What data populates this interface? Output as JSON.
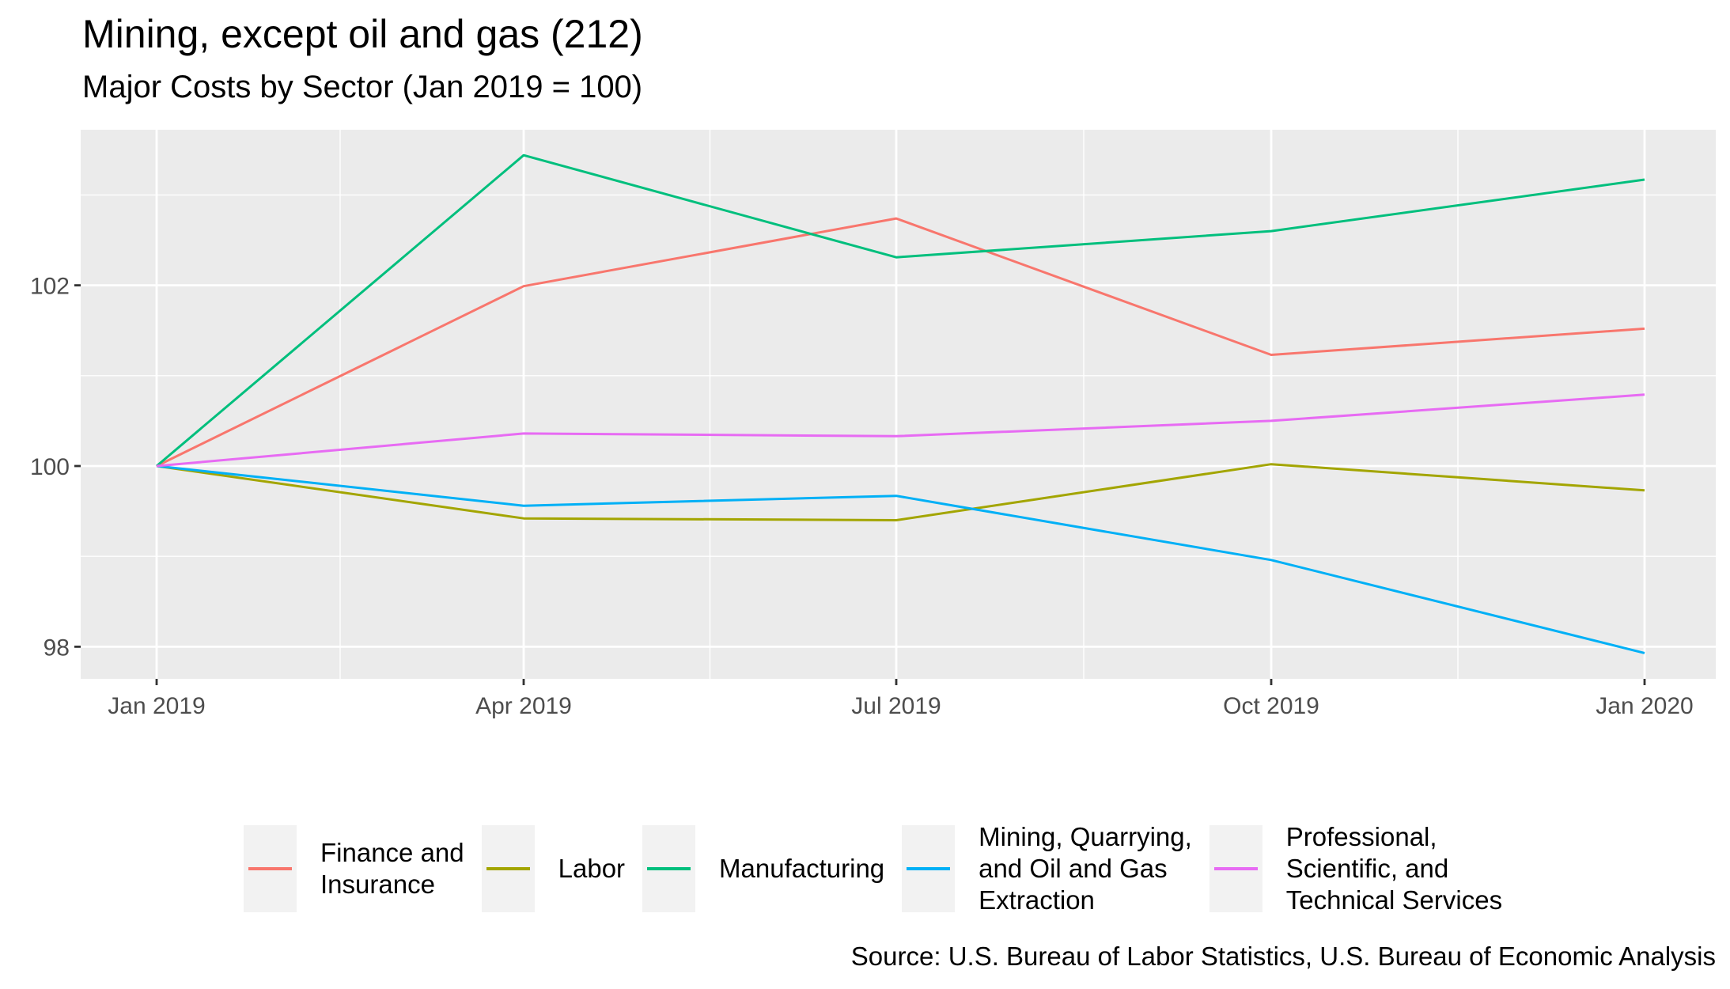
{
  "chart_data": {
    "type": "line",
    "title": "Mining, except oil and gas (212)",
    "subtitle": "Major Costs by Sector (Jan 2019 = 100)",
    "xlabel": "",
    "ylabel": "",
    "x": [
      "Jan 2019",
      "Apr 2019",
      "Jul 2019",
      "Oct 2019",
      "Jan 2020"
    ],
    "ylim": [
      97.7,
      103.7
    ],
    "yticks": [
      98,
      100,
      102
    ],
    "ytick_labels": [
      "98",
      "100",
      "102"
    ],
    "grid": true,
    "legend_position": "bottom",
    "series": [
      {
        "name": "Finance and\nInsurance",
        "color": "#F8766D",
        "values": [
          100,
          101.99,
          102.74,
          101.23,
          101.52
        ]
      },
      {
        "name": "Labor",
        "color": "#A3A500",
        "values": [
          100,
          99.42,
          99.4,
          100.02,
          99.73
        ]
      },
      {
        "name": "Manufacturing",
        "color": "#00BF7D",
        "values": [
          100,
          103.44,
          102.31,
          102.6,
          103.17
        ]
      },
      {
        "name": "Mining, Quarrying,\nand Oil and Gas\nExtraction",
        "color": "#00B0F6",
        "values": [
          100,
          99.56,
          99.67,
          98.96,
          97.93
        ]
      },
      {
        "name": "Professional,\nScientific, and\nTechnical Services",
        "color": "#E76BF3",
        "values": [
          100,
          100.36,
          100.33,
          100.5,
          100.79
        ]
      }
    ],
    "caption": "Source: U.S. Bureau of Labor Statistics, U.S. Bureau of Economic Analysis"
  }
}
